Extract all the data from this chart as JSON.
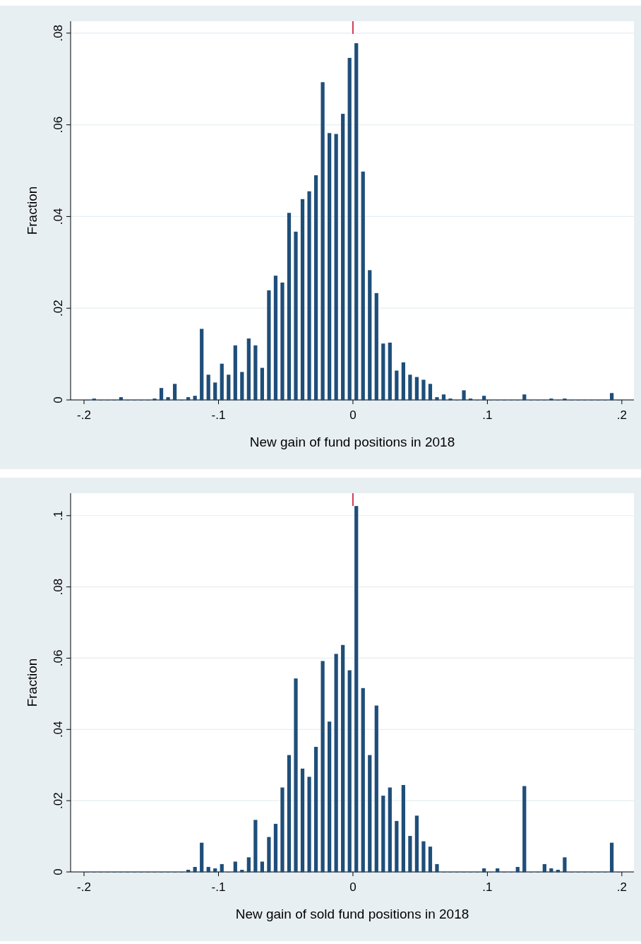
{
  "chart_data": [
    {
      "type": "histogram",
      "xlabel": "New gain of fund positions in 2018",
      "ylabel": "Fraction",
      "color": "#1f4e79",
      "bins": [
        -0.2,
        -0.195,
        -0.19,
        -0.185,
        -0.18,
        -0.175,
        -0.17,
        -0.165,
        -0.16,
        -0.155,
        -0.15,
        -0.145,
        -0.14,
        -0.135,
        -0.13,
        -0.125,
        -0.12,
        -0.115,
        -0.11,
        -0.105,
        -0.1,
        -0.095,
        -0.09,
        -0.085,
        -0.08,
        -0.075,
        -0.07,
        -0.065,
        -0.06,
        -0.055,
        -0.05,
        -0.045,
        -0.04,
        -0.035,
        -0.03,
        -0.025,
        -0.02,
        -0.015,
        -0.01,
        -0.005,
        0,
        0.005,
        0.01,
        0.015,
        0.02,
        0.025,
        0.03,
        0.035,
        0.04,
        0.045,
        0.05,
        0.055,
        0.06,
        0.065,
        0.07,
        0.075,
        0.08,
        0.085,
        0.09,
        0.095,
        0.1,
        0.105,
        0.11,
        0.115,
        0.12,
        0.125,
        0.13,
        0.135,
        0.14,
        0.145,
        0.15,
        0.155,
        0.16,
        0.165,
        0.17,
        0.175,
        0.18,
        0.185,
        0.19,
        0.195,
        0.2
      ],
      "values": [
        0,
        0.0003,
        0,
        0,
        0,
        0.0006,
        0,
        0,
        0,
        0,
        0.0003,
        0.0026,
        0.0006,
        0.0035,
        0,
        0.0006,
        0.0009,
        0.0155,
        0.0055,
        0.0038,
        0.0079,
        0.0055,
        0.0119,
        0.0061,
        0.0134,
        0.0119,
        0.007,
        0.0239,
        0.0271,
        0.0256,
        0.0408,
        0.0367,
        0.0438,
        0.0455,
        0.049,
        0.0693,
        0.0582,
        0.058,
        0.0624,
        0.0746,
        0.0778,
        0.0498,
        0.0283,
        0.0233,
        0.0123,
        0.0125,
        0.0064,
        0.0082,
        0.0055,
        0.005,
        0.0044,
        0.0035,
        0.0006,
        0.0012,
        0.0003,
        0,
        0.0021,
        0.0003,
        0,
        0.0009,
        0,
        0,
        0,
        0,
        0,
        0.0012,
        0,
        0,
        0,
        0.0003,
        0,
        0.0003,
        0,
        0,
        0,
        0,
        0,
        0,
        0.0015,
        0
      ],
      "xlim": [
        -0.21,
        0.209
      ],
      "ylim": [
        0,
        0.0826
      ],
      "xticks": [
        {
          "value": -0.2,
          "label": "-.2"
        },
        {
          "value": -0.1,
          "label": "-.1"
        },
        0,
        {
          "value": 0.1,
          "label": ".1"
        },
        {
          "value": 0.2,
          "label": ".2"
        }
      ],
      "yticks": [
        0,
        {
          "value": 0.02,
          "label": ".02"
        },
        {
          "value": 0.04,
          "label": ".04"
        },
        {
          "value": 0.06,
          "label": ".06"
        },
        {
          "value": 0.08,
          "label": ".08"
        }
      ],
      "grid": "y"
    },
    {
      "type": "histogram",
      "xlabel": "New gain of sold fund positions in 2018",
      "ylabel": "Fraction",
      "color": "#1f4e79",
      "bins": [
        -0.2,
        -0.195,
        -0.19,
        -0.185,
        -0.18,
        -0.175,
        -0.17,
        -0.165,
        -0.16,
        -0.155,
        -0.15,
        -0.145,
        -0.14,
        -0.135,
        -0.13,
        -0.125,
        -0.12,
        -0.115,
        -0.11,
        -0.105,
        -0.1,
        -0.095,
        -0.09,
        -0.085,
        -0.08,
        -0.075,
        -0.07,
        -0.065,
        -0.06,
        -0.055,
        -0.05,
        -0.045,
        -0.04,
        -0.035,
        -0.03,
        -0.025,
        -0.02,
        -0.015,
        -0.01,
        -0.005,
        0,
        0.005,
        0.01,
        0.015,
        0.02,
        0.025,
        0.03,
        0.035,
        0.04,
        0.045,
        0.05,
        0.055,
        0.06,
        0.065,
        0.07,
        0.075,
        0.08,
        0.085,
        0.09,
        0.095,
        0.1,
        0.105,
        0.11,
        0.115,
        0.12,
        0.125,
        0.13,
        0.135,
        0.14,
        0.145,
        0.15,
        0.155,
        0.16,
        0.165,
        0.17,
        0.175,
        0.18,
        0.185,
        0.19,
        0.195,
        0.2
      ],
      "values": [
        0,
        0,
        0,
        0,
        0,
        0,
        0,
        0,
        0,
        0,
        0,
        0,
        0,
        0,
        0,
        0.0006,
        0.0014,
        0.0082,
        0.0014,
        0.001,
        0.0022,
        0,
        0.0029,
        0.0006,
        0.0041,
        0.0146,
        0.0029,
        0.0098,
        0.0135,
        0.0237,
        0.0328,
        0.0543,
        0.029,
        0.0267,
        0.0351,
        0.0592,
        0.0422,
        0.0612,
        0.0637,
        0.0566,
        0.1027,
        0.0516,
        0.0328,
        0.0467,
        0.0214,
        0.0237,
        0.0143,
        0.0244,
        0.0101,
        0.0158,
        0.0086,
        0.0071,
        0.0022,
        0,
        0,
        0,
        0,
        0,
        0,
        0.001,
        0,
        0.001,
        0,
        0,
        0.0014,
        0.0241,
        0,
        0,
        0.0022,
        0.001,
        0.0006,
        0.0041,
        0,
        0,
        0,
        0,
        0,
        0,
        0.0082,
        0
      ],
      "xlim": [
        -0.21,
        0.209
      ],
      "ylim": [
        0,
        0.1063
      ],
      "xticks": [
        {
          "value": -0.2,
          "label": "-.2"
        },
        {
          "value": -0.1,
          "label": "-.1"
        },
        0,
        {
          "value": 0.1,
          "label": ".1"
        },
        {
          "value": 0.2,
          "label": ".2"
        }
      ],
      "yticks": [
        0,
        {
          "value": 0.02,
          "label": ".02"
        },
        {
          "value": 0.04,
          "label": ".04"
        },
        {
          "value": 0.06,
          "label": ".06"
        },
        {
          "value": 0.08,
          "label": ".08"
        },
        {
          "value": 0.1,
          "label": ".1"
        }
      ],
      "grid": "y"
    }
  ]
}
